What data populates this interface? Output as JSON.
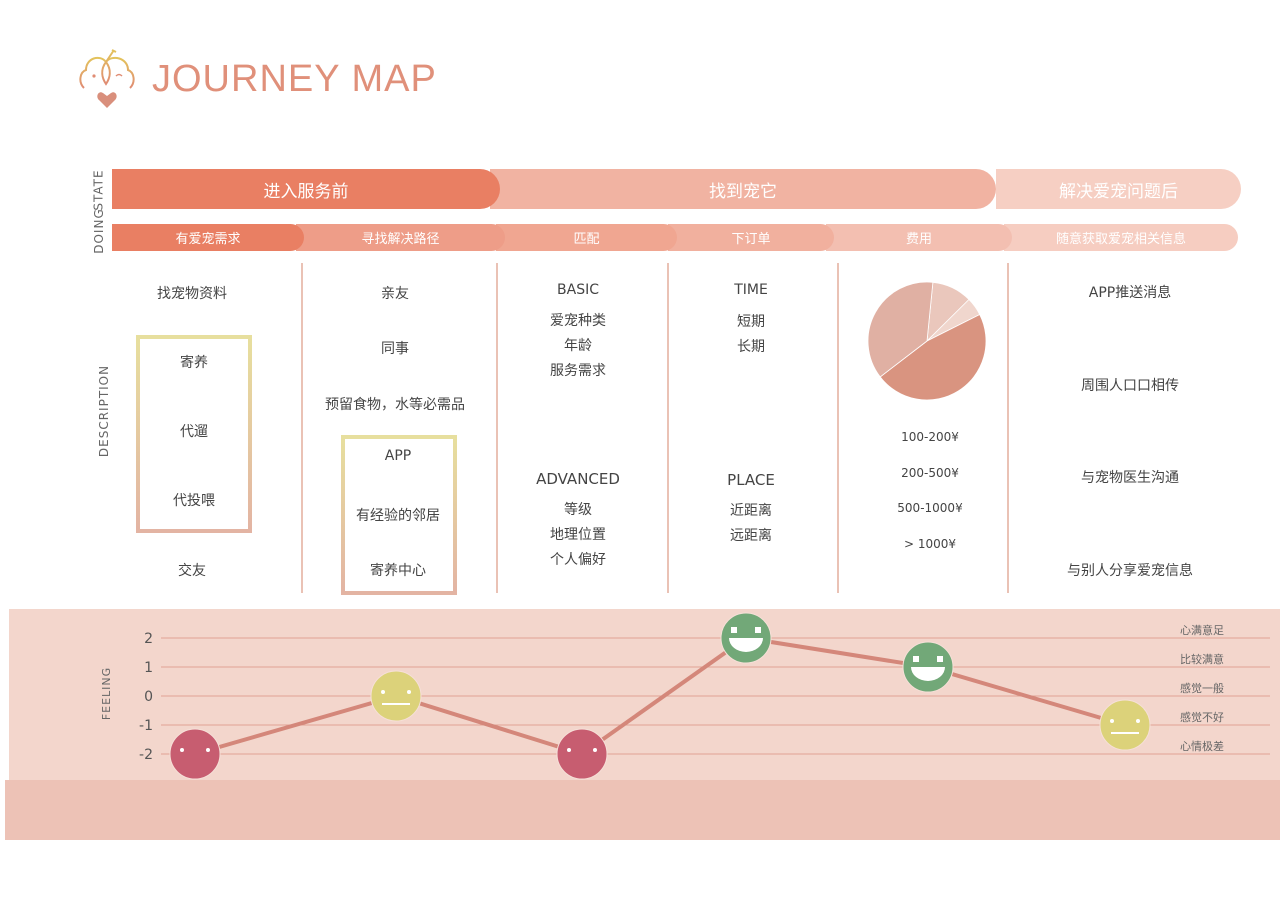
{
  "header": {
    "title": "JOURNEY MAP",
    "logo": "pet-bird-heart-logo"
  },
  "row_labels": {
    "state": "STATE",
    "doing": "DOING",
    "description": "DESCRIPTION",
    "feeling": "FEELING"
  },
  "states": [
    {
      "label": "进入服务前",
      "color": "#e97f63"
    },
    {
      "label": "找到宠它",
      "color": "#f1b3a2"
    },
    {
      "label": "解决爱宠问题后",
      "color": "#f6cfc3"
    }
  ],
  "doing": [
    {
      "label": "有爱宠需求",
      "color": "#e97f63"
    },
    {
      "label": "寻找解决路径",
      "color": "#ee9d88"
    },
    {
      "label": "匹配",
      "color": "#f0a691"
    },
    {
      "label": "下订单",
      "color": "#f1b09e"
    },
    {
      "label": "费用",
      "color": "#f3bfb1"
    },
    {
      "label": "随意获取爱宠相关信息",
      "color": "#f6cdc1"
    }
  ],
  "columns": {
    "c1": {
      "top": "找宠物资料",
      "box": [
        "寄养",
        "代遛",
        "代投喂"
      ],
      "bottom": "交友"
    },
    "c2": {
      "items": [
        "亲友",
        "同事",
        "预留食物，水等必需品"
      ],
      "box": [
        "APP",
        "有经验的邻居",
        "寄养中心"
      ]
    },
    "c3": {
      "basic": "BASIC",
      "basic_items": [
        "爱宠种类",
        "年龄",
        "服务需求"
      ],
      "advanced": "ADVANCED",
      "advanced_items": [
        "等级",
        "地理位置",
        "个人偏好"
      ]
    },
    "c4": {
      "time": "TIME",
      "time_items": [
        "短期",
        "长期"
      ],
      "place": "PLACE",
      "place_items": [
        "近距离",
        "远距离"
      ]
    },
    "c5": {
      "ranges": [
        "100-200¥",
        "200-500¥",
        "500-1000¥",
        "> 1000¥"
      ]
    },
    "c6": {
      "items": [
        "APP推送消息",
        "周围人口口相传",
        "与宠物医生沟通",
        "与别人分享爱宠信息"
      ]
    }
  },
  "chart_data": [
    {
      "type": "pie",
      "slices": [
        {
          "value": 11,
          "color": "#eac7bc"
        },
        {
          "value": 5,
          "color": "#f0d6cd"
        },
        {
          "value": 47,
          "color": "#d99480"
        },
        {
          "value": 37,
          "color": "#e0b0a3"
        }
      ]
    },
    {
      "type": "line",
      "ylim": [
        -2,
        2
      ],
      "yticks": [
        "2",
        "1",
        "0",
        "-1",
        "-2"
      ],
      "level_labels": [
        "心满意足",
        "比较满意",
        "感觉一般",
        "感觉不好",
        "心情极差"
      ],
      "values": [
        -2,
        0,
        -2,
        2,
        1,
        -1
      ],
      "line_color": "#d4877a",
      "face_colors": {
        "sad": "#c75d70",
        "neutral": "#dcd27a",
        "happy": "#72a878"
      }
    }
  ]
}
